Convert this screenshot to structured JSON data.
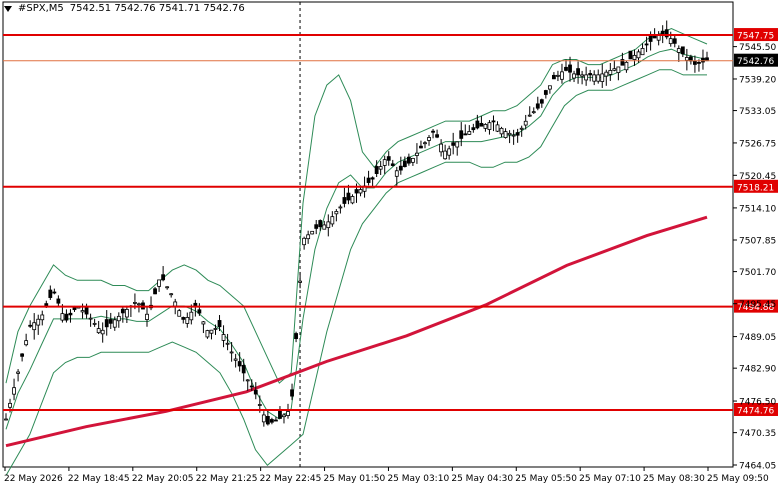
{
  "header": {
    "symbol_tf": "#SPX,M5",
    "ohlc": "7542.51 7542.76 7541.71 7542.76"
  },
  "colors": {
    "candle": "#000000",
    "bollinger": "#2e8b57",
    "ma": "#d2143a",
    "level": "#e00000",
    "current_price_box": "#000000",
    "current_price_line": "#e07040"
  },
  "chart_data": {
    "type": "candlestick",
    "y_axis": {
      "min": 7464.05,
      "max": 7551.85,
      "ticks": [
        "7545.50",
        "7539.20",
        "7533.05",
        "7526.75",
        "7520.45",
        "7514.10",
        "7507.85",
        "7501.70",
        "7495.45",
        "7489.05",
        "7482.90",
        "7476.50",
        "7470.35",
        "7464.05"
      ]
    },
    "x_axis": {
      "ticks": [
        "22 May 2026",
        "22 May 18:45",
        "22 May 20:05",
        "22 May 21:25",
        "22 May 22:45",
        "25 May 01:50",
        "25 May 03:10",
        "25 May 04:30",
        "25 May 05:50",
        "25 May 07:10",
        "25 May 08:30",
        "25 May 09:50"
      ]
    },
    "horizontal_levels": [
      7547.75,
      7518.21,
      7494.88,
      7474.76
    ],
    "level_labels": [
      "7547.75",
      "7518.21",
      "7494.88",
      "7474.76"
    ],
    "current_price": 7542.76,
    "current_price_label": "7542.76",
    "session_separator_label": "22 May 22:45",
    "moving_average": {
      "x_index": [
        0,
        20,
        40,
        60,
        80,
        100,
        120,
        140,
        160,
        175
      ],
      "y": [
        7467.8,
        7471.5,
        7474.5,
        7478.3,
        7484.2,
        7489.2,
        7495.3,
        7502.9,
        7508.7,
        7512.3
      ]
    },
    "close_path": [
      7473,
      7482,
      7491,
      7493,
      7498,
      7492,
      7495,
      7493,
      7490,
      7492,
      7494,
      7496,
      7493,
      7501,
      7497,
      7492,
      7495,
      7490,
      7491,
      7486,
      7482,
      7478,
      7472,
      7473,
      7475,
      7508,
      7510,
      7511,
      7514,
      7516,
      7518,
      7520,
      7524,
      7521,
      7523,
      7526,
      7529,
      7525,
      7527,
      7529,
      7530,
      7531,
      7529,
      7528,
      7532,
      7534,
      7539,
      7541,
      7540,
      7540,
      7540,
      7541,
      7542,
      7544,
      7546,
      7548,
      7547,
      7544,
      7542,
      7542.76
    ],
    "bollinger_upper": [
      7480,
      7490,
      7495,
      7499,
      7503,
      7501,
      7500,
      7500,
      7500,
      7499,
      7499,
      7498,
      7498,
      7500,
      7502,
      7503,
      7502,
      7500,
      7499,
      7497,
      7495,
      7490,
      7485,
      7480,
      7482,
      7515,
      7532,
      7538,
      7540,
      7535,
      7525,
      7522,
      7525,
      7527,
      7528,
      7529,
      7530,
      7531,
      7531,
      7531,
      7532,
      7533,
      7533,
      7534,
      7536,
      7538,
      7542,
      7543,
      7543,
      7542,
      7542,
      7543,
      7544,
      7545,
      7547,
      7548,
      7549,
      7548,
      7547,
      7546
    ],
    "bollinger_lower": [
      7462,
      7466,
      7470,
      7476,
      7482,
      7484,
      7485,
      7485,
      7486,
      7486,
      7486,
      7486,
      7486,
      7487,
      7488,
      7487,
      7486,
      7484,
      7482,
      7478,
      7473,
      7467,
      7464,
      7466,
      7468,
      7470,
      7480,
      7490,
      7498,
      7506,
      7511,
      7514,
      7517,
      7519,
      7520,
      7521,
      7522,
      7523,
      7523,
      7523,
      7522,
      7522,
      7523,
      7523,
      7524,
      7526,
      7530,
      7534,
      7536,
      7537,
      7537,
      7537,
      7538,
      7539,
      7540,
      7541,
      7541,
      7540,
      7540,
      7540
    ]
  }
}
